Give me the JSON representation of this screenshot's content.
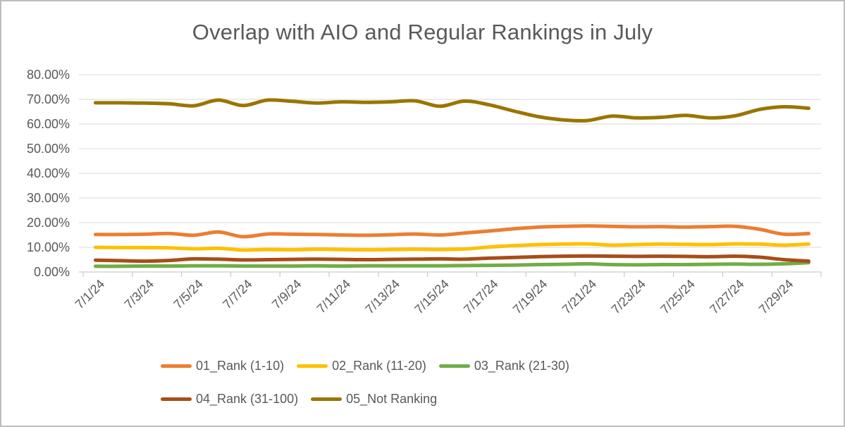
{
  "chart_data": {
    "type": "line",
    "title": "Overlap with AIO and Regular Rankings in July",
    "grid": true,
    "smooth": true,
    "legend_position": "bottom",
    "x": [
      "7/1/24",
      "7/2/24",
      "7/3/24",
      "7/4/24",
      "7/5/24",
      "7/6/24",
      "7/7/24",
      "7/8/24",
      "7/9/24",
      "7/10/24",
      "7/11/24",
      "7/12/24",
      "7/13/24",
      "7/14/24",
      "7/15/24",
      "7/16/24",
      "7/17/24",
      "7/18/24",
      "7/19/24",
      "7/20/24",
      "7/21/24",
      "7/22/24",
      "7/23/24",
      "7/24/24",
      "7/25/24",
      "7/26/24",
      "7/27/24",
      "7/28/24",
      "7/29/24",
      "7/30/24"
    ],
    "x_tick_labels": [
      "7/1/24",
      "7/3/24",
      "7/5/24",
      "7/7/24",
      "7/9/24",
      "7/11/24",
      "7/13/24",
      "7/15/24",
      "7/17/24",
      "7/19/24",
      "7/21/24",
      "7/23/24",
      "7/25/24",
      "7/27/24",
      "7/29/24"
    ],
    "x_label_interval": 2,
    "y_axis": {
      "min": 0,
      "max": 80,
      "step": 10,
      "format": "percent",
      "tick_labels": [
        "80.00%",
        "70.00%",
        "60.00%",
        "50.00%",
        "40.00%",
        "30.00%",
        "20.00%",
        "10.00%",
        "0.00%"
      ]
    },
    "series": [
      {
        "name": "01_Rank (1-10)",
        "color": "#ED7D31",
        "values": [
          15.2,
          15.2,
          15.3,
          15.6,
          14.9,
          16.2,
          14.3,
          15.4,
          15.3,
          15.2,
          15.0,
          14.9,
          15.1,
          15.4,
          15.0,
          15.8,
          16.6,
          17.5,
          18.2,
          18.5,
          18.7,
          18.5,
          18.3,
          18.4,
          18.2,
          18.4,
          18.5,
          17.3,
          15.3,
          15.6
        ]
      },
      {
        "name": "02_Rank (11-20)",
        "color": "#FFC000",
        "values": [
          10.0,
          9.9,
          9.9,
          9.8,
          9.4,
          9.6,
          8.9,
          9.1,
          9.0,
          9.2,
          9.1,
          9.0,
          9.1,
          9.2,
          9.1,
          9.3,
          10.1,
          10.7,
          11.1,
          11.3,
          11.4,
          10.9,
          11.1,
          11.3,
          11.2,
          11.1,
          11.4,
          11.3,
          10.9,
          11.3
        ]
      },
      {
        "name": "03_Rank (21-30)",
        "color": "#70AD47",
        "values": [
          2.3,
          2.3,
          2.4,
          2.4,
          2.5,
          2.5,
          2.4,
          2.4,
          2.4,
          2.5,
          2.4,
          2.5,
          2.5,
          2.5,
          2.5,
          2.6,
          2.7,
          2.8,
          3.0,
          3.1,
          3.3,
          3.0,
          2.9,
          3.0,
          3.0,
          3.1,
          3.2,
          3.1,
          3.3,
          3.8
        ]
      },
      {
        "name": "04_Rank (31-100)",
        "color": "#A84D17",
        "values": [
          4.8,
          4.6,
          4.4,
          4.7,
          5.3,
          5.2,
          4.9,
          5.0,
          5.1,
          5.2,
          5.1,
          5.0,
          5.1,
          5.2,
          5.3,
          5.2,
          5.6,
          5.9,
          6.2,
          6.4,
          6.5,
          6.4,
          6.3,
          6.4,
          6.3,
          6.2,
          6.4,
          6.0,
          5.0,
          4.4
        ]
      },
      {
        "name": "05_Not Ranking",
        "color": "#9A7500",
        "values": [
          68.6,
          68.6,
          68.5,
          68.2,
          67.4,
          69.7,
          67.5,
          69.7,
          69.2,
          68.5,
          69.0,
          68.8,
          69.0,
          69.4,
          67.2,
          69.3,
          67.8,
          65.3,
          63.0,
          61.7,
          61.4,
          63.2,
          62.5,
          62.7,
          63.5,
          62.5,
          63.3,
          65.9,
          67.0,
          66.4
        ]
      }
    ],
    "legend_rows": [
      [
        0,
        1,
        2
      ],
      [
        3,
        4
      ]
    ]
  },
  "style": {
    "text_color": "#595959",
    "grid_color": "#D9D9D9",
    "axis_color": "#BFBFBF",
    "background": "#FFFFFF",
    "border_color": "#BDBDBD"
  }
}
